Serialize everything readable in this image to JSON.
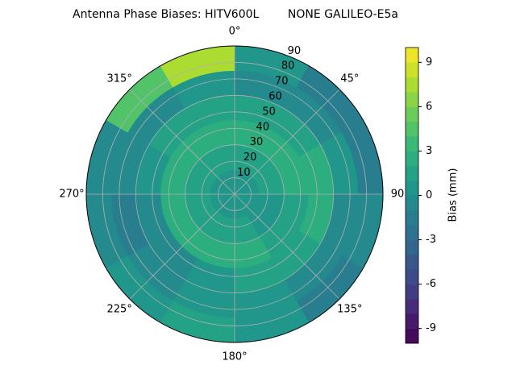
{
  "chart_data": {
    "type": "polar_contour",
    "title": "Antenna Phase Biases: HITV600L        NONE GALILEO-E5a",
    "rlim": [
      0,
      90
    ],
    "rticks": [
      10,
      20,
      30,
      40,
      50,
      60,
      70,
      80,
      90
    ],
    "thetaticks": [
      {
        "value": 0,
        "label": "0°"
      },
      {
        "value": 45,
        "label": "45°"
      },
      {
        "value": 90,
        "label": "90"
      },
      {
        "value": 135,
        "label": "135°"
      },
      {
        "value": 180,
        "label": "180°"
      },
      {
        "value": 225,
        "label": "225°"
      },
      {
        "value": 270,
        "label": "270°"
      },
      {
        "value": 315,
        "label": "315°"
      }
    ],
    "theta_direction": "clockwise",
    "theta_zero": "N",
    "grid": true,
    "colormap": "viridis",
    "field": [
      [
        0,
        0,
        0,
        0,
        0,
        0,
        0,
        0,
        0,
        0,
        0,
        0
      ],
      [
        1,
        1,
        1,
        0,
        0,
        1,
        1,
        1,
        1,
        1,
        1,
        1
      ],
      [
        2,
        2,
        2,
        1,
        1,
        2,
        2,
        2,
        2,
        2,
        2,
        2
      ],
      [
        1,
        1,
        2,
        2,
        1,
        1,
        0,
        -1,
        -1,
        0,
        1,
        1
      ],
      [
        -1,
        -1,
        0,
        -1,
        -1,
        0,
        0,
        -1,
        -2,
        -1,
        -1,
        0
      ],
      [
        0,
        -2,
        -2,
        -1,
        -2,
        0,
        1,
        0,
        -1,
        -1,
        4,
        7
      ]
    ],
    "clim": [
      -10,
      10
    ],
    "cticks": [
      -9,
      -6,
      -3,
      0,
      3,
      6,
      9
    ],
    "clabel": "Bias (mm)"
  }
}
